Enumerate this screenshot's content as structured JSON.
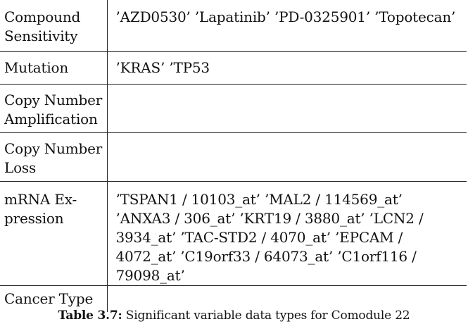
{
  "table": {
    "rows": [
      {
        "label": "Compound Sensitivity",
        "value": "’AZD0530’ ’Lapatinib’ ’PD-0325901’ ’Topotecan’"
      },
      {
        "label": "Mutation",
        "value": "’KRAS’ ’TP53"
      },
      {
        "label": "Copy Number Amplification",
        "value": ""
      },
      {
        "label": "Copy Number Loss",
        "value": ""
      },
      {
        "label": "mRNA Ex-pression",
        "value": "’TSPAN1 / 10103_at’ ’MAL2 / 114569_at’ ’ANXA3 / 306_at’ ’KRT19 / 3880_at’ ’LCN2 / 3934_at’ ’TAC-STD2 / 4070_at’ ’EPCAM / 4072_at’ ’C19orf33 / 64073_at’ ’C1orf116 / 79098_at’"
      },
      {
        "label": "Cancer Type",
        "value": ""
      }
    ]
  },
  "caption": {
    "label": "Table 3.7:",
    "text": " Significant variable data types for Comodule 22"
  }
}
